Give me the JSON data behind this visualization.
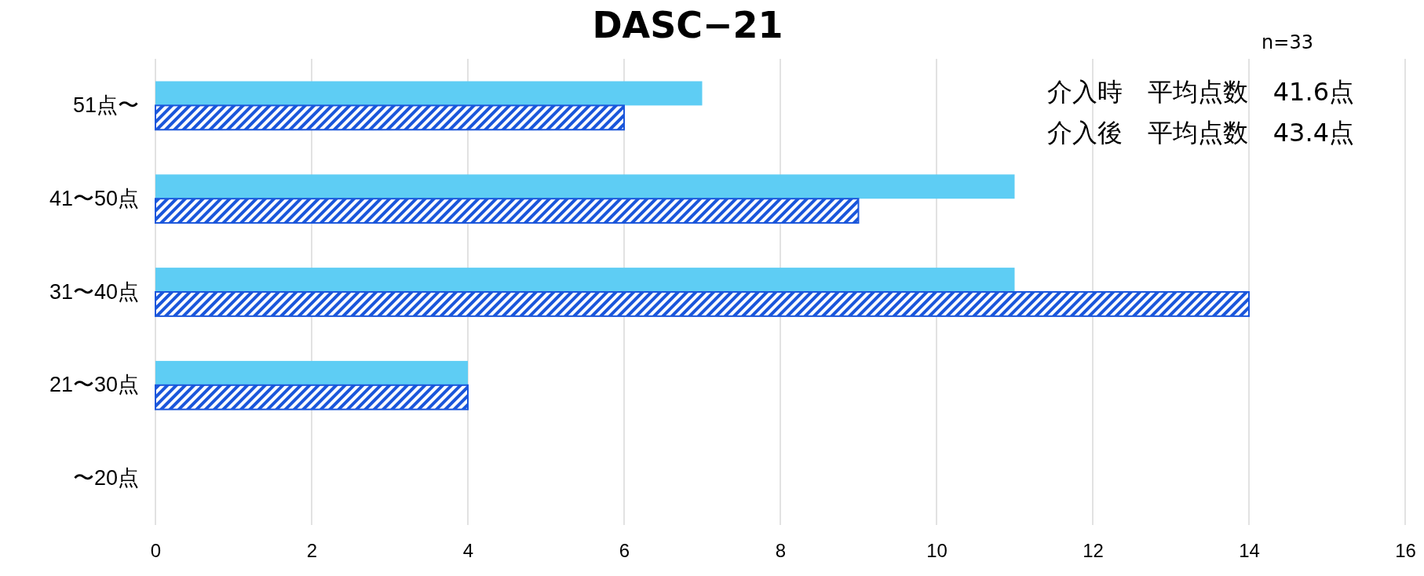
{
  "chart_data": {
    "type": "bar",
    "orientation": "horizontal",
    "title": "DASC−21",
    "categories": [
      "51点〜",
      "41〜50点",
      "31〜40点",
      "21〜30点",
      "〜20点"
    ],
    "series": [
      {
        "color": "#5ecdf4",
        "values": [
          7,
          11,
          11,
          4,
          0
        ]
      },
      {
        "color": "#1a56db",
        "values": [
          6,
          9,
          14,
          4,
          0
        ]
      }
    ],
    "xlim": [
      0,
      16
    ],
    "xticks": [
      0,
      2,
      4,
      6,
      8,
      10,
      12,
      14,
      16
    ],
    "grid": "x",
    "annotations": [
      "n=33",
      "介入時　平均点数　41.6点",
      "介入後　平均点数　43.4点"
    ]
  }
}
